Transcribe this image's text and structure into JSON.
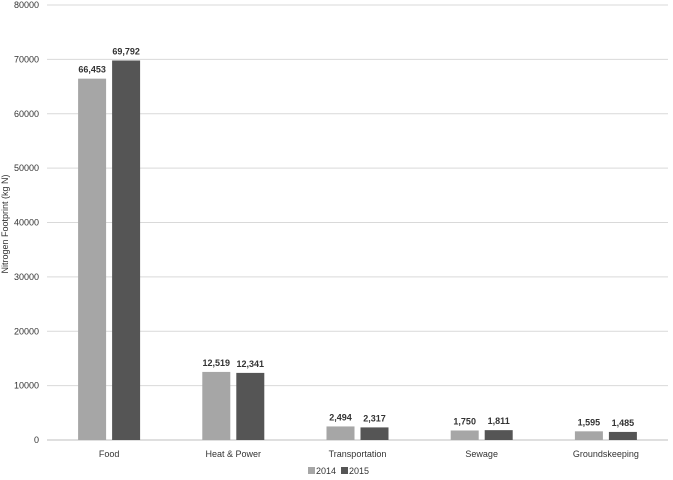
{
  "chart_data": {
    "type": "bar",
    "title": "",
    "xlabel": "",
    "ylabel": "Nitrogen Footprint (kg N)",
    "ylim": [
      0,
      80000
    ],
    "yticks": [
      0,
      10000,
      20000,
      30000,
      40000,
      50000,
      60000,
      70000,
      80000
    ],
    "grid": true,
    "legend_position": "bottom",
    "categories": [
      "Food",
      "Heat & Power",
      "Transportation",
      "Sewage",
      "Groundskeeping"
    ],
    "series": [
      {
        "name": "2014",
        "color": "#a6a6a6",
        "values": [
          66453,
          12519,
          2494,
          1750,
          1595
        ],
        "labels": [
          "66,453",
          "12,519",
          "2,494",
          "1,750",
          "1,595"
        ]
      },
      {
        "name": "2015",
        "color": "#555555",
        "values": [
          69792,
          12341,
          2317,
          1811,
          1485
        ],
        "labels": [
          "69,792",
          "12,341",
          "2,317",
          "1,811",
          "1,485"
        ]
      }
    ]
  }
}
